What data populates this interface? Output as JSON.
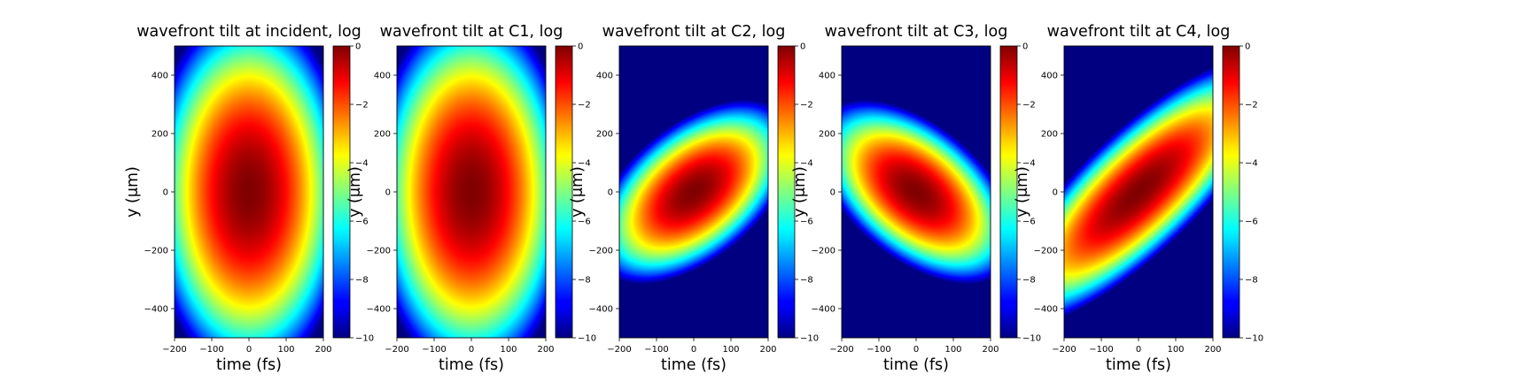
{
  "chart_data": [
    {
      "type": "heatmap",
      "title": "wavefront tilt at incident, log",
      "xlabel": "time (fs)",
      "ylabel": "y ($\\mu$m)",
      "xlim": [
        -200,
        200
      ],
      "ylim": [
        -500,
        500
      ],
      "xticks": [
        -200,
        -100,
        0,
        100,
        200
      ],
      "yticks": [
        -400,
        -200,
        0,
        200,
        400
      ],
      "colorbar": {
        "range": [
          -10,
          0
        ],
        "ticks": [
          0,
          -2,
          -4,
          -6,
          -8,
          -10
        ],
        "colormap": "jet",
        "scale": "log10 intensity"
      },
      "beam": {
        "sigma_t_fs": 40,
        "sigma_y_um": 95,
        "tilt_um_per_fs": 0,
        "peak_t_fs": 0,
        "peak_y_um": 0
      }
    },
    {
      "type": "heatmap",
      "title": "wavefront tilt at C1, log",
      "xlabel": "time (fs)",
      "ylabel": "y ($\\mu$m)",
      "xlim": [
        -200,
        200
      ],
      "ylim": [
        -500,
        500
      ],
      "xticks": [
        -200,
        -100,
        0,
        100,
        200
      ],
      "yticks": [
        -400,
        -200,
        0,
        200,
        400
      ],
      "colorbar": {
        "range": [
          -10,
          0
        ],
        "ticks": [
          0,
          -2,
          -4,
          -6,
          -8,
          -10
        ],
        "colormap": "jet",
        "scale": "log10 intensity"
      },
      "beam": {
        "sigma_t_fs": 40,
        "sigma_y_um": 95,
        "tilt_um_per_fs": 0,
        "peak_t_fs": 0,
        "peak_y_um": 0
      }
    },
    {
      "type": "heatmap",
      "title": "wavefront tilt at C2, log",
      "xlabel": "time (fs)",
      "ylabel": "y ($\\mu$m)",
      "xlim": [
        -200,
        200
      ],
      "ylim": [
        -500,
        500
      ],
      "xticks": [
        -200,
        -100,
        0,
        100,
        200
      ],
      "yticks": [
        -400,
        -200,
        0,
        200,
        400
      ],
      "colorbar": {
        "range": [
          -10,
          0
        ],
        "ticks": [
          0,
          -2,
          -4,
          -6,
          -8,
          -10
        ],
        "colormap": "jet",
        "scale": "log10 intensity"
      },
      "beam": {
        "sigma_t_fs": 40,
        "sigma_y_um": 40,
        "tilt_um_per_fs": 0.6,
        "peak_t_fs": 0,
        "peak_y_um": 0
      }
    },
    {
      "type": "heatmap",
      "title": "wavefront tilt at C3, log",
      "xlabel": "time (fs)",
      "ylabel": "y ($\\mu$m)",
      "xlim": [
        -200,
        200
      ],
      "ylim": [
        -500,
        500
      ],
      "xticks": [
        -200,
        -100,
        0,
        100,
        200
      ],
      "yticks": [
        -400,
        -200,
        0,
        200,
        400
      ],
      "colorbar": {
        "range": [
          -10,
          0
        ],
        "ticks": [
          0,
          -2,
          -4,
          -6,
          -8,
          -10
        ],
        "colormap": "jet",
        "scale": "log10 intensity"
      },
      "beam": {
        "sigma_t_fs": 40,
        "sigma_y_um": 40,
        "tilt_um_per_fs": -0.6,
        "peak_t_fs": 0,
        "peak_y_um": 0
      }
    },
    {
      "type": "heatmap",
      "title": "wavefront tilt at C4, log",
      "xlabel": "time (fs)",
      "ylabel": "y ($\\mu$m)",
      "xlim": [
        -200,
        200
      ],
      "ylim": [
        -500,
        500
      ],
      "xticks": [
        -200,
        -100,
        0,
        100,
        200
      ],
      "yticks": [
        -400,
        -200,
        0,
        200,
        400
      ],
      "colorbar": {
        "range": [
          -10,
          0
        ],
        "ticks": [
          0,
          -2,
          -4,
          -6,
          -8,
          -10
        ],
        "colormap": "jet",
        "scale": "log10 intensity"
      },
      "beam": {
        "sigma_t_fs": 55,
        "sigma_y_um": 40,
        "tilt_um_per_fs": 1.0,
        "peak_t_fs": 0,
        "peak_y_um": 0
      }
    }
  ]
}
